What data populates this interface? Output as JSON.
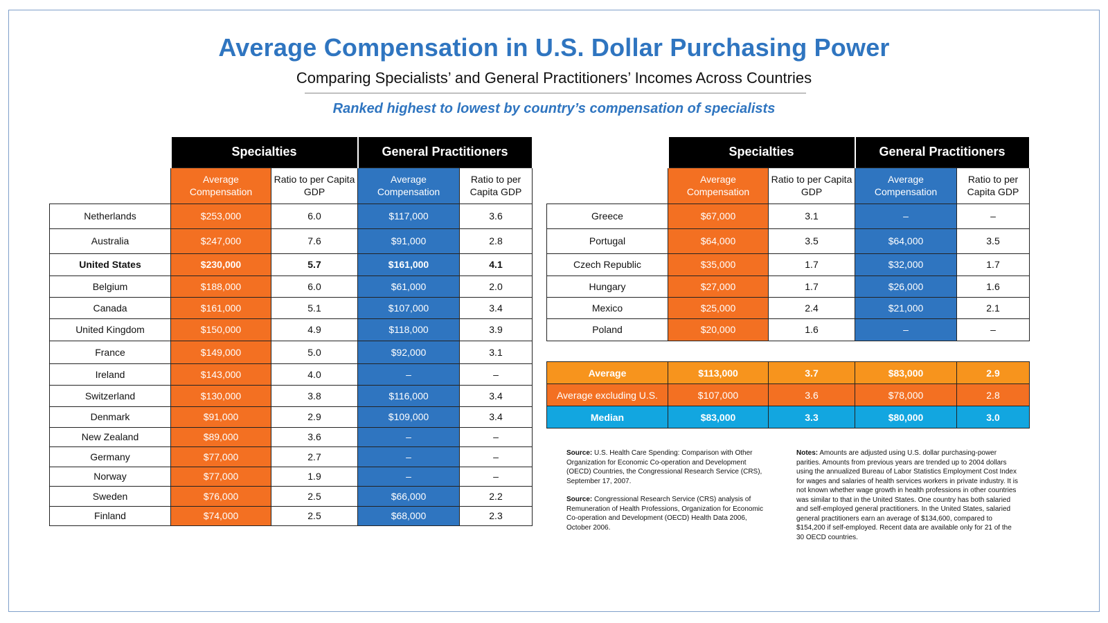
{
  "title": "Average Compensation in U.S. Dollar Purchasing Power",
  "subtitle": "Comparing Specialists’ and General Practitioners’ Incomes Across Countries",
  "ranked": "Ranked highest to lowest by country’s compensation of specialists",
  "headers": {
    "specialties": "Specialties",
    "general": "General Practitioners",
    "avg_comp": "Average Compensation",
    "ratio": "Ratio to per Capita GDP"
  },
  "colors": {
    "orange": "#f37022",
    "blue": "#2f75c0",
    "average": "#f7941d",
    "median": "#12a6e0",
    "title": "#2f75c0"
  },
  "left_rows": [
    {
      "country": "Netherlands",
      "spec_comp": "$253,000",
      "spec_ratio": "6.0",
      "gp_comp": "$117,000",
      "gp_ratio": "3.6"
    },
    {
      "country": "Australia",
      "spec_comp": "$247,000",
      "spec_ratio": "7.6",
      "gp_comp": "$91,000",
      "gp_ratio": "2.8"
    },
    {
      "country": "United States",
      "spec_comp": "$230,000",
      "spec_ratio": "5.7",
      "gp_comp": "$161,000",
      "gp_ratio": "4.1",
      "bold": true
    },
    {
      "country": "Belgium",
      "spec_comp": "$188,000",
      "spec_ratio": "6.0",
      "gp_comp": "$61,000",
      "gp_ratio": "2.0"
    },
    {
      "country": "Canada",
      "spec_comp": "$161,000",
      "spec_ratio": "5.1",
      "gp_comp": "$107,000",
      "gp_ratio": "3.4"
    },
    {
      "country": "United Kingdom",
      "spec_comp": "$150,000",
      "spec_ratio": "4.9",
      "gp_comp": "$118,000",
      "gp_ratio": "3.9"
    },
    {
      "country": "France",
      "spec_comp": "$149,000",
      "spec_ratio": "5.0",
      "gp_comp": "$92,000",
      "gp_ratio": "3.1"
    },
    {
      "country": "Ireland",
      "spec_comp": "$143,000",
      "spec_ratio": "4.0",
      "gp_comp": "–",
      "gp_ratio": "–"
    },
    {
      "country": "Switzerland",
      "spec_comp": "$130,000",
      "spec_ratio": "3.8",
      "gp_comp": "$116,000",
      "gp_ratio": "3.4"
    },
    {
      "country": "Denmark",
      "spec_comp": "$91,000",
      "spec_ratio": "2.9",
      "gp_comp": "$109,000",
      "gp_ratio": "3.4"
    },
    {
      "country": "New Zealand",
      "spec_comp": "$89,000",
      "spec_ratio": "3.6",
      "gp_comp": "–",
      "gp_ratio": "–"
    },
    {
      "country": "Germany",
      "spec_comp": "$77,000",
      "spec_ratio": "2.7",
      "gp_comp": "–",
      "gp_ratio": "–"
    },
    {
      "country": "Norway",
      "spec_comp": "$77,000",
      "spec_ratio": "1.9",
      "gp_comp": "–",
      "gp_ratio": "–"
    },
    {
      "country": "Sweden",
      "spec_comp": "$76,000",
      "spec_ratio": "2.5",
      "gp_comp": "$66,000",
      "gp_ratio": "2.2"
    },
    {
      "country": "Finland",
      "spec_comp": "$74,000",
      "spec_ratio": "2.5",
      "gp_comp": "$68,000",
      "gp_ratio": "2.3"
    }
  ],
  "right_rows": [
    {
      "country": "Greece",
      "spec_comp": "$67,000",
      "spec_ratio": "3.1",
      "gp_comp": "–",
      "gp_ratio": "–"
    },
    {
      "country": "Portugal",
      "spec_comp": "$64,000",
      "spec_ratio": "3.5",
      "gp_comp": "$64,000",
      "gp_ratio": "3.5"
    },
    {
      "country": "Czech Republic",
      "spec_comp": "$35,000",
      "spec_ratio": "1.7",
      "gp_comp": "$32,000",
      "gp_ratio": "1.7"
    },
    {
      "country": "Hungary",
      "spec_comp": "$27,000",
      "spec_ratio": "1.7",
      "gp_comp": "$26,000",
      "gp_ratio": "1.6"
    },
    {
      "country": "Mexico",
      "spec_comp": "$25,000",
      "spec_ratio": "2.4",
      "gp_comp": "$21,000",
      "gp_ratio": "2.1"
    },
    {
      "country": "Poland",
      "spec_comp": "$20,000",
      "spec_ratio": "1.6",
      "gp_comp": "–",
      "gp_ratio": "–"
    }
  ],
  "summary": {
    "average": {
      "label": "Average",
      "spec_comp": "$113,000",
      "spec_ratio": "3.7",
      "gp_comp": "$83,000",
      "gp_ratio": "2.9"
    },
    "average_ex_us": {
      "label": "Average excluding U.S.",
      "spec_comp": "$107,000",
      "spec_ratio": "3.6",
      "gp_comp": "$78,000",
      "gp_ratio": "2.8"
    },
    "median": {
      "label": "Median",
      "spec_comp": "$83,000",
      "spec_ratio": "3.3",
      "gp_comp": "$80,000",
      "gp_ratio": "3.0"
    }
  },
  "sources": {
    "label1": "Source:",
    "text1": "U.S. Health Care Spending: Comparison with Other Organization for Economic Co-operation and Development (OECD) Countries, the Congressional Research Service (CRS), September 17, 2007.",
    "label2": "Source:",
    "text2": "Congressional Research Service (CRS) analysis of Remuneration of Health Professions, Organization for Economic Co-operation and Development (OECD) Health Data 2006, October 2006."
  },
  "notes": {
    "label": "Notes:",
    "text": "Amounts are adjusted using U.S. dollar purchasing-power parities. Amounts from previous years are trended up to 2004 dollars using the annualized Bureau of Labor Statistics Employment Cost Index for wages and salaries of health services workers in private industry. It is not known whether wage growth in health professions in other countries was similar to that in the United States. One country has both salaried and self-employed general practitioners. In the United States, salaried general practitioners earn an average of $134,600, compared to $154,200 if self-employed. Recent data are available only for 21 of the 30 OECD countries."
  }
}
